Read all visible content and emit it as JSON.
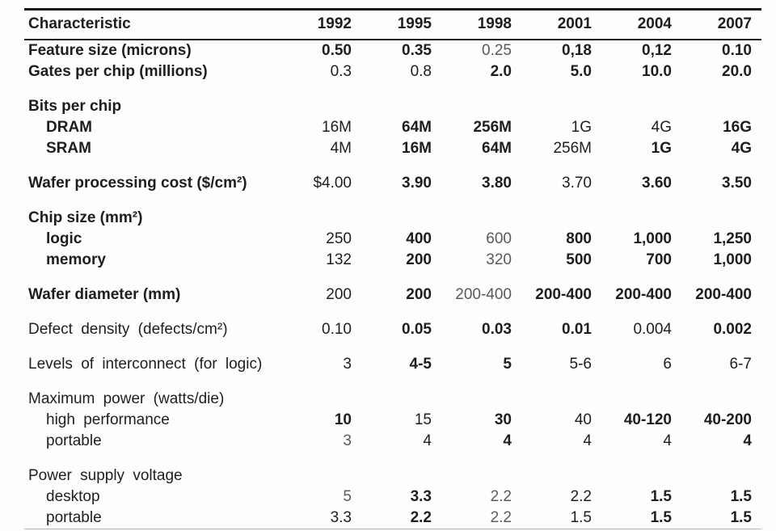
{
  "table": {
    "columns": [
      "Characteristic",
      "1992",
      "1995",
      "1998",
      "2001",
      "2004",
      "2007"
    ],
    "rows": [
      {
        "kind": "data",
        "label": "Feature size (microns)",
        "ls": "bold",
        "ind": 0,
        "cells": [
          {
            "t": "0.50",
            "w": "b"
          },
          {
            "t": "0.35",
            "w": "b"
          },
          {
            "t": "0.25",
            "w": "l"
          },
          {
            "t": "0,18",
            "w": "b"
          },
          {
            "t": "0,12",
            "w": "b"
          },
          {
            "t": "0.10",
            "w": "b"
          }
        ]
      },
      {
        "kind": "data",
        "label": "Gates per chip (millions)",
        "ls": "bold",
        "ind": 0,
        "cells": [
          {
            "t": "0.3",
            "w": "n"
          },
          {
            "t": "0.8",
            "w": "n"
          },
          {
            "t": "2.0",
            "w": "b"
          },
          {
            "t": "5.0",
            "w": "b"
          },
          {
            "t": "10.0",
            "w": "b"
          },
          {
            "t": "20.0",
            "w": "b"
          }
        ]
      },
      {
        "kind": "spacer"
      },
      {
        "kind": "group",
        "label": "Bits per chip",
        "ls": "bold",
        "ind": 0,
        "cells": []
      },
      {
        "kind": "data",
        "label": "DRAM",
        "ls": "bold",
        "ind": 1,
        "cells": [
          {
            "t": "16M",
            "w": "n"
          },
          {
            "t": "64M",
            "w": "b"
          },
          {
            "t": "256M",
            "w": "b"
          },
          {
            "t": "1G",
            "w": "n"
          },
          {
            "t": "4G",
            "w": "n"
          },
          {
            "t": "16G",
            "w": "b"
          }
        ]
      },
      {
        "kind": "data",
        "label": "SRAM",
        "ls": "bold",
        "ind": 1,
        "cells": [
          {
            "t": "4M",
            "w": "n"
          },
          {
            "t": "16M",
            "w": "b"
          },
          {
            "t": "64M",
            "w": "b"
          },
          {
            "t": "256M",
            "w": "n"
          },
          {
            "t": "1G",
            "w": "b"
          },
          {
            "t": "4G",
            "w": "b"
          }
        ]
      },
      {
        "kind": "spacer"
      },
      {
        "kind": "data",
        "label": "Wafer processing cost ($/cm²)",
        "ls": "bold",
        "ind": 0,
        "cells": [
          {
            "t": "$4.00",
            "w": "n"
          },
          {
            "t": "3.90",
            "w": "b"
          },
          {
            "t": "3.80",
            "w": "b"
          },
          {
            "t": "3.70",
            "w": "n"
          },
          {
            "t": "3.60",
            "w": "b"
          },
          {
            "t": "3.50",
            "w": "b"
          }
        ]
      },
      {
        "kind": "spacer"
      },
      {
        "kind": "group",
        "label": "Chip size (mm²)",
        "ls": "bold",
        "ind": 0,
        "cells": []
      },
      {
        "kind": "data",
        "label": "logic",
        "ls": "bold",
        "ind": 1,
        "cells": [
          {
            "t": "250",
            "w": "n"
          },
          {
            "t": "400",
            "w": "b"
          },
          {
            "t": "600",
            "w": "l"
          },
          {
            "t": "800",
            "w": "b"
          },
          {
            "t": "1,000",
            "w": "b"
          },
          {
            "t": "1,250",
            "w": "b"
          }
        ]
      },
      {
        "kind": "data",
        "label": "memory",
        "ls": "bold",
        "ind": 1,
        "cells": [
          {
            "t": "132",
            "w": "n"
          },
          {
            "t": "200",
            "w": "b"
          },
          {
            "t": "320",
            "w": "l"
          },
          {
            "t": "500",
            "w": "b"
          },
          {
            "t": "700",
            "w": "b"
          },
          {
            "t": "1,000",
            "w": "b"
          }
        ]
      },
      {
        "kind": "spacer"
      },
      {
        "kind": "data",
        "label": "Wafer diameter (mm)",
        "ls": "bold",
        "ind": 0,
        "cells": [
          {
            "t": "200",
            "w": "n"
          },
          {
            "t": "200",
            "w": "b"
          },
          {
            "t": "200-400",
            "w": "l"
          },
          {
            "t": "200-400",
            "w": "b"
          },
          {
            "t": "200-400",
            "w": "b"
          },
          {
            "t": "200-400",
            "w": "b"
          }
        ]
      },
      {
        "kind": "spacer"
      },
      {
        "kind": "data",
        "label": "Defect density (defects/cm²)",
        "ls": "spaced",
        "ind": 0,
        "cells": [
          {
            "t": "0.10",
            "w": "n"
          },
          {
            "t": "0.05",
            "w": "b"
          },
          {
            "t": "0.03",
            "w": "b"
          },
          {
            "t": "0.01",
            "w": "b"
          },
          {
            "t": "0.004",
            "w": "n"
          },
          {
            "t": "0.002",
            "w": "b"
          }
        ]
      },
      {
        "kind": "spacer"
      },
      {
        "kind": "data",
        "label": "Levels of interconnect (for logic)",
        "ls": "spaced",
        "ind": 0,
        "cells": [
          {
            "t": "3",
            "w": "n"
          },
          {
            "t": "4-5",
            "w": "b"
          },
          {
            "t": "5",
            "w": "b"
          },
          {
            "t": "5-6",
            "w": "n"
          },
          {
            "t": "6",
            "w": "n"
          },
          {
            "t": "6-7",
            "w": "n"
          }
        ]
      },
      {
        "kind": "spacer"
      },
      {
        "kind": "group",
        "label": "Maximum power (watts/die)",
        "ls": "spaced",
        "ind": 0,
        "cells": []
      },
      {
        "kind": "data",
        "label": "high performance",
        "ls": "spaced",
        "ind": 1,
        "cells": [
          {
            "t": "10",
            "w": "b"
          },
          {
            "t": "15",
            "w": "n"
          },
          {
            "t": "30",
            "w": "b"
          },
          {
            "t": "40",
            "w": "n"
          },
          {
            "t": "40-120",
            "w": "b"
          },
          {
            "t": "40-200",
            "w": "b"
          }
        ]
      },
      {
        "kind": "data",
        "label": "portable",
        "ls": "plain",
        "ind": 1,
        "cells": [
          {
            "t": "3",
            "w": "l"
          },
          {
            "t": "4",
            "w": "n"
          },
          {
            "t": "4",
            "w": "b"
          },
          {
            "t": "4",
            "w": "n"
          },
          {
            "t": "4",
            "w": "n"
          },
          {
            "t": "4",
            "w": "b"
          }
        ]
      },
      {
        "kind": "spacer"
      },
      {
        "kind": "group",
        "label": "Power supply voltage",
        "ls": "spaced",
        "ind": 0,
        "cells": []
      },
      {
        "kind": "data",
        "label": "desktop",
        "ls": "plain",
        "ind": 1,
        "cells": [
          {
            "t": "5",
            "w": "l"
          },
          {
            "t": "3.3",
            "w": "b"
          },
          {
            "t": "2.2",
            "w": "l"
          },
          {
            "t": "2.2",
            "w": "n"
          },
          {
            "t": "1.5",
            "w": "b"
          },
          {
            "t": "1.5",
            "w": "b"
          }
        ]
      },
      {
        "kind": "data",
        "label": "portable",
        "ls": "plain",
        "ind": 1,
        "cells": [
          {
            "t": "3.3",
            "w": "n"
          },
          {
            "t": "2.2",
            "w": "b"
          },
          {
            "t": "2.2",
            "w": "l"
          },
          {
            "t": "1.5",
            "w": "n"
          },
          {
            "t": "1.5",
            "w": "b"
          },
          {
            "t": "1.5",
            "w": "b"
          }
        ]
      }
    ]
  }
}
